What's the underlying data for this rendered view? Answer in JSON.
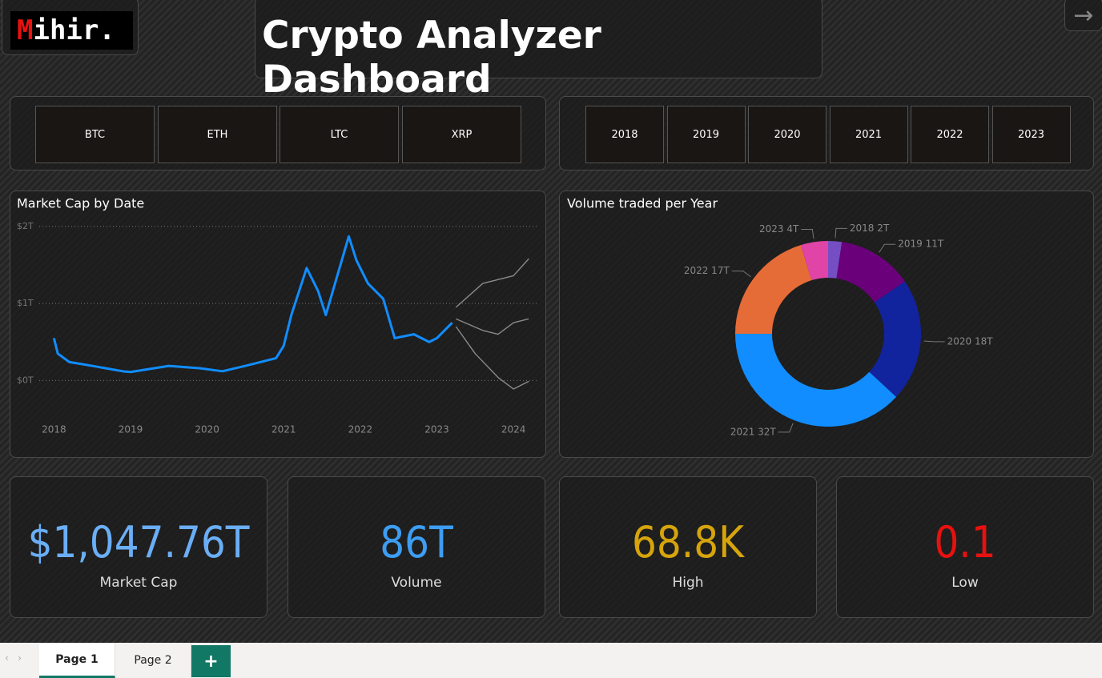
{
  "header": {
    "logo": {
      "initial": "M",
      "rest": "ihir."
    },
    "title": "Crypto Analyzer Dashboard"
  },
  "coin_slicer": [
    "BTC",
    "ETH",
    "LTC",
    "XRP"
  ],
  "year_slicer": [
    "2018",
    "2019",
    "2020",
    "2021",
    "2022",
    "2023"
  ],
  "market_cap_chart": {
    "type": "line",
    "title": "Market Cap by Date",
    "xlim": [
      2017.85,
      2024.25
    ],
    "xticks": [
      2018,
      2019,
      2020,
      2021,
      2022,
      2023,
      2024
    ],
    "ylim": [
      -0.37,
      2.05
    ],
    "yticks": [
      {
        "value": 0,
        "label": "$0T"
      },
      {
        "value": 1,
        "label": "$1T"
      },
      {
        "value": 2,
        "label": "$2T"
      }
    ],
    "grid": true,
    "series": [
      {
        "color": "#118dff",
        "x": [
          2018.0,
          2018.05,
          2018.2,
          2018.5,
          2018.9,
          2019.0,
          2019.5,
          2019.9,
          2020.2,
          2020.5,
          2020.9,
          2021.0,
          2021.1,
          2021.3,
          2021.45,
          2021.55,
          2021.7,
          2021.85,
          2021.95,
          2022.1,
          2022.3,
          2022.45,
          2022.7,
          2022.9,
          2023.0,
          2023.2
        ],
        "values": [
          0.55,
          0.35,
          0.24,
          0.19,
          0.12,
          0.11,
          0.19,
          0.16,
          0.12,
          0.19,
          0.29,
          0.45,
          0.85,
          1.46,
          1.16,
          0.85,
          1.36,
          1.87,
          1.56,
          1.26,
          1.06,
          0.55,
          0.6,
          0.5,
          0.55,
          0.75
        ]
      },
      {
        "color": "#8a8a8a",
        "x": [
          2023.25,
          2023.6,
          2024.0,
          2024.2
        ],
        "values": [
          0.95,
          1.26,
          1.36,
          1.58
        ]
      },
      {
        "color": "#8a8a8a",
        "x": [
          2023.25,
          2023.6,
          2023.8,
          2024.0,
          2024.2
        ],
        "values": [
          0.8,
          0.65,
          0.6,
          0.75,
          0.8
        ]
      },
      {
        "color": "#8a8a8a",
        "x": [
          2023.25,
          2023.5,
          2023.8,
          2024.0,
          2024.2
        ],
        "values": [
          0.7,
          0.35,
          0.04,
          -0.11,
          -0.01
        ]
      }
    ]
  },
  "volume_chart": {
    "type": "donut",
    "title": "Volume traded per Year",
    "values": [
      2,
      11,
      18,
      32,
      17,
      4
    ],
    "value_labels": [
      "2018 2T",
      "2019 11T",
      "2020 18T",
      "2021 32T",
      "2022 17T",
      "2023 4T"
    ],
    "colors": [
      "#744ec2",
      "#6b007b",
      "#12239e",
      "#118dff",
      "#e66c37",
      "#e044a7"
    ]
  },
  "kpis": [
    {
      "value": "$1,047.76T",
      "label": "Market Cap",
      "color": "#6aaef5"
    },
    {
      "value": "86T",
      "label": "Volume",
      "color": "#3d9df2"
    },
    {
      "value": "68.8K",
      "label": "High",
      "color": "#d6a40c"
    },
    {
      "value": "0.1",
      "label": "Low",
      "color": "#e8110f"
    }
  ],
  "tabs": [
    "Page 1",
    "Page 2",
    "+"
  ]
}
